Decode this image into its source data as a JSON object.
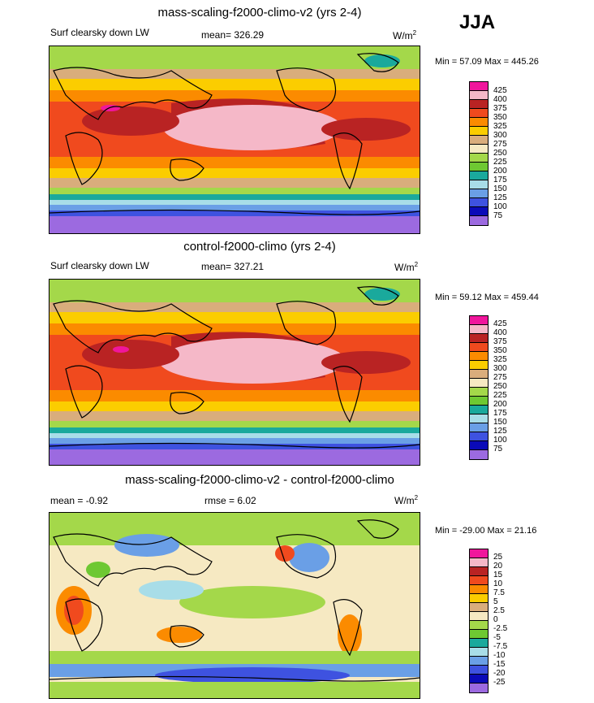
{
  "season": "JJA",
  "units": "W/m",
  "units_sup": "2",
  "panels": [
    {
      "title": "mass-scaling-f2000-climo-v2 (yrs 2-4)",
      "variable": "Surf clearsky down LW",
      "stat": "mean= 326.29",
      "minmax": "Min =  57.09 Max = 445.26",
      "levels": [
        "425",
        "400",
        "375",
        "350",
        "325",
        "300",
        "275",
        "250",
        "225",
        "200",
        "175",
        "150",
        "125",
        "100",
        "75"
      ],
      "colors": [
        "#f0169c",
        "#f5b8c8",
        "#b92323",
        "#f04a1e",
        "#fb8b00",
        "#fbcd00",
        "#d9ad7c",
        "#f6e9c2",
        "#a4d84a",
        "#6ec832",
        "#1aa99c",
        "#a8dde8",
        "#6a9fe6",
        "#3e52e0",
        "#0a0ab8",
        "#9c6ae0"
      ]
    },
    {
      "title": "control-f2000-climo (yrs 2-4)",
      "variable": "Surf clearsky down LW",
      "stat": "mean= 327.21",
      "minmax": "Min =  59.12 Max = 459.44",
      "levels": [
        "425",
        "400",
        "375",
        "350",
        "325",
        "300",
        "275",
        "250",
        "225",
        "200",
        "175",
        "150",
        "125",
        "100",
        "75"
      ],
      "colors": [
        "#f0169c",
        "#f5b8c8",
        "#b92323",
        "#f04a1e",
        "#fb8b00",
        "#fbcd00",
        "#d9ad7c",
        "#f6e9c2",
        "#a4d84a",
        "#6ec832",
        "#1aa99c",
        "#a8dde8",
        "#6a9fe6",
        "#3e52e0",
        "#0a0ab8",
        "#9c6ae0"
      ]
    },
    {
      "title": "mass-scaling-f2000-climo-v2 - control-f2000-climo",
      "variable": "mean =  -0.92",
      "stat": "rmse =   6.02",
      "minmax": "Min = -29.00 Max =  21.16",
      "levels": [
        "25",
        "20",
        "15",
        "10",
        "7.5",
        "5",
        "2.5",
        "0",
        "-2.5",
        "-5",
        "-7.5",
        "-10",
        "-15",
        "-20",
        "-25"
      ],
      "colors": [
        "#f0169c",
        "#f5b8c8",
        "#b92323",
        "#f04a1e",
        "#fb8b00",
        "#fbcd00",
        "#d9ad7c",
        "#f6e9c2",
        "#a4d84a",
        "#6ec832",
        "#1aa99c",
        "#a8dde8",
        "#6a9fe6",
        "#3e52e0",
        "#0a0ab8",
        "#9c6ae0"
      ]
    }
  ]
}
